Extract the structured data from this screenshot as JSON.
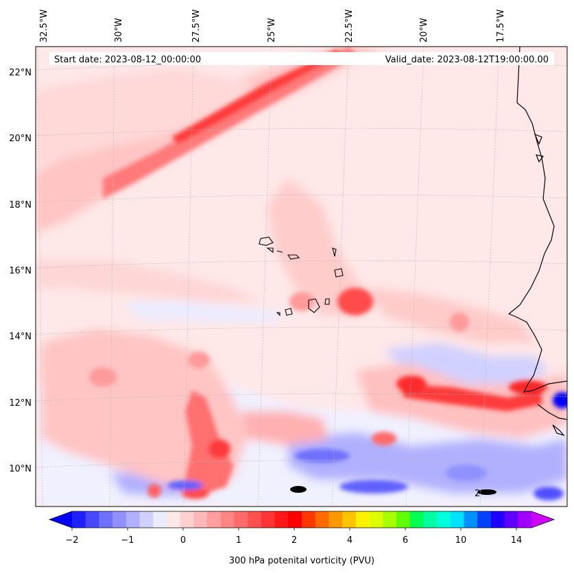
{
  "map": {
    "start_date": "Start date: 2023-08-12_00:00:00",
    "valid_date": "Valid_date: 2023-08-12T19:00:00.00",
    "lon_labels": [
      "32.5°W",
      "30°W",
      "27.5°W",
      "25°W",
      "22.5°W",
      "20°W",
      "17.5°W"
    ],
    "lat_labels": [
      "22°N",
      "20°N",
      "18°N",
      "16°N",
      "14°N",
      "12°N",
      "10°N"
    ],
    "contour_label": "2",
    "colors": {
      "land_outline": "#000000",
      "grid": "#bbbbbb"
    }
  },
  "colorbar": {
    "label": "300 hPa potenital vorticity (PVU)",
    "tick_labels": [
      "−2",
      "−1",
      "0",
      "1",
      "2",
      "4",
      "6",
      "10",
      "14"
    ],
    "colors": [
      "#0000ff",
      "#2020ff",
      "#4848ff",
      "#7070ff",
      "#9090ff",
      "#b0b0ff",
      "#d0d0ff",
      "#ececff",
      "#ffe8e8",
      "#ffd0d0",
      "#ffb8b8",
      "#ff9e9e",
      "#ff8484",
      "#ff6a6a",
      "#ff5050",
      "#ff3434",
      "#ff1818",
      "#ff0000",
      "#ff3800",
      "#ff6a00",
      "#ff9800",
      "#ffc400",
      "#fff000",
      "#ddff00",
      "#a8ff00",
      "#60ff00",
      "#00ff50",
      "#00ffa0",
      "#00ffdc",
      "#00e0ff",
      "#0090ff",
      "#0040ff",
      "#2000ff",
      "#6000ff",
      "#a000ff",
      "#d000ff"
    ]
  }
}
